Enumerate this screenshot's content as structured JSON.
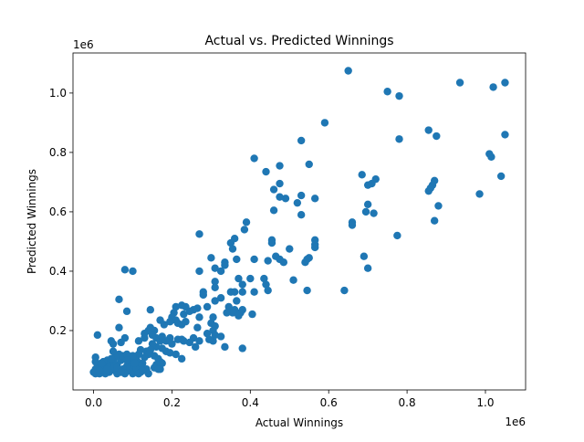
{
  "chart_data": {
    "type": "scatter",
    "title": "Actual vs. Predicted Winnings",
    "xlabel": "Actual Winnings",
    "ylabel": "Predicted Winnings",
    "x_offset_label": "1e6",
    "y_offset_label": "1e6",
    "xlim": [
      -0.0525,
      1.1025
    ],
    "ylim": [
      0.0,
      1.135
    ],
    "x_ticks": [
      0.0,
      0.2,
      0.4,
      0.6,
      0.8,
      1.0
    ],
    "x_tick_labels": [
      "0.0",
      "0.2",
      "0.4",
      "0.6",
      "0.8",
      "1.0"
    ],
    "y_ticks": [
      0.2,
      0.4,
      0.6,
      0.8,
      1.0
    ],
    "y_tick_labels": [
      "0.2",
      "0.4",
      "0.6",
      "0.8",
      "1.0"
    ],
    "grid": false,
    "legend": "none",
    "marker_color": "#1f77b4",
    "series": [
      {
        "points": [
          [
            0.65,
            1.075
          ],
          [
            0.75,
            1.005
          ],
          [
            0.78,
            0.99
          ],
          [
            0.935,
            1.035
          ],
          [
            1.05,
            1.035
          ],
          [
            1.02,
            1.02
          ],
          [
            0.59,
            0.9
          ],
          [
            0.855,
            0.875
          ],
          [
            0.875,
            0.855
          ],
          [
            0.78,
            0.845
          ],
          [
            0.53,
            0.84
          ],
          [
            0.41,
            0.78
          ],
          [
            1.01,
            0.795
          ],
          [
            1.015,
            0.785
          ],
          [
            1.05,
            0.86
          ],
          [
            0.44,
            0.735
          ],
          [
            0.475,
            0.755
          ],
          [
            0.55,
            0.76
          ],
          [
            0.685,
            0.725
          ],
          [
            0.72,
            0.71
          ],
          [
            0.7,
            0.69
          ],
          [
            0.71,
            0.695
          ],
          [
            0.87,
            0.705
          ],
          [
            0.865,
            0.69
          ],
          [
            1.04,
            0.72
          ],
          [
            0.475,
            0.695
          ],
          [
            0.46,
            0.675
          ],
          [
            0.49,
            0.645
          ],
          [
            0.475,
            0.65
          ],
          [
            0.53,
            0.655
          ],
          [
            0.52,
            0.63
          ],
          [
            0.565,
            0.645
          ],
          [
            0.46,
            0.605
          ],
          [
            0.53,
            0.59
          ],
          [
            0.855,
            0.67
          ],
          [
            0.86,
            0.68
          ],
          [
            0.985,
            0.66
          ],
          [
            0.7,
            0.625
          ],
          [
            0.695,
            0.6
          ],
          [
            0.715,
            0.595
          ],
          [
            0.88,
            0.62
          ],
          [
            0.39,
            0.565
          ],
          [
            0.385,
            0.54
          ],
          [
            0.36,
            0.51
          ],
          [
            0.66,
            0.565
          ],
          [
            0.66,
            0.555
          ],
          [
            0.87,
            0.57
          ],
          [
            0.27,
            0.525
          ],
          [
            0.35,
            0.495
          ],
          [
            0.355,
            0.475
          ],
          [
            0.455,
            0.505
          ],
          [
            0.455,
            0.495
          ],
          [
            0.565,
            0.505
          ],
          [
            0.565,
            0.49
          ],
          [
            0.565,
            0.48
          ],
          [
            0.775,
            0.52
          ],
          [
            0.5,
            0.475
          ],
          [
            0.465,
            0.45
          ],
          [
            0.475,
            0.44
          ],
          [
            0.485,
            0.43
          ],
          [
            0.445,
            0.435
          ],
          [
            0.55,
            0.445
          ],
          [
            0.545,
            0.44
          ],
          [
            0.54,
            0.43
          ],
          [
            0.69,
            0.45
          ],
          [
            0.7,
            0.41
          ],
          [
            0.3,
            0.445
          ],
          [
            0.335,
            0.43
          ],
          [
            0.335,
            0.42
          ],
          [
            0.365,
            0.44
          ],
          [
            0.41,
            0.44
          ],
          [
            0.27,
            0.4
          ],
          [
            0.31,
            0.41
          ],
          [
            0.325,
            0.4
          ],
          [
            0.37,
            0.375
          ],
          [
            0.4,
            0.375
          ],
          [
            0.435,
            0.375
          ],
          [
            0.38,
            0.355
          ],
          [
            0.44,
            0.355
          ],
          [
            0.445,
            0.335
          ],
          [
            0.51,
            0.37
          ],
          [
            0.545,
            0.335
          ],
          [
            0.64,
            0.335
          ],
          [
            0.31,
            0.365
          ],
          [
            0.31,
            0.345
          ],
          [
            0.28,
            0.33
          ],
          [
            0.28,
            0.32
          ],
          [
            0.35,
            0.33
          ],
          [
            0.36,
            0.33
          ],
          [
            0.38,
            0.33
          ],
          [
            0.41,
            0.33
          ],
          [
            0.325,
            0.31
          ],
          [
            0.31,
            0.3
          ],
          [
            0.365,
            0.3
          ],
          [
            0.345,
            0.28
          ],
          [
            0.36,
            0.27
          ],
          [
            0.355,
            0.26
          ],
          [
            0.375,
            0.26
          ],
          [
            0.37,
            0.25
          ],
          [
            0.38,
            0.27
          ],
          [
            0.34,
            0.26
          ],
          [
            0.405,
            0.255
          ],
          [
            0.29,
            0.28
          ],
          [
            0.265,
            0.275
          ],
          [
            0.255,
            0.27
          ],
          [
            0.235,
            0.28
          ],
          [
            0.225,
            0.285
          ],
          [
            0.21,
            0.28
          ],
          [
            0.245,
            0.265
          ],
          [
            0.23,
            0.255
          ],
          [
            0.205,
            0.26
          ],
          [
            0.2,
            0.245
          ],
          [
            0.21,
            0.235
          ],
          [
            0.195,
            0.23
          ],
          [
            0.17,
            0.235
          ],
          [
            0.18,
            0.22
          ],
          [
            0.215,
            0.225
          ],
          [
            0.225,
            0.22
          ],
          [
            0.235,
            0.23
          ],
          [
            0.27,
            0.245
          ],
          [
            0.265,
            0.21
          ],
          [
            0.305,
            0.245
          ],
          [
            0.3,
            0.225
          ],
          [
            0.31,
            0.215
          ],
          [
            0.305,
            0.2
          ],
          [
            0.29,
            0.19
          ],
          [
            0.31,
            0.185
          ],
          [
            0.325,
            0.18
          ],
          [
            0.305,
            0.165
          ],
          [
            0.295,
            0.17
          ],
          [
            0.27,
            0.165
          ],
          [
            0.255,
            0.175
          ],
          [
            0.245,
            0.16
          ],
          [
            0.23,
            0.165
          ],
          [
            0.225,
            0.17
          ],
          [
            0.215,
            0.17
          ],
          [
            0.26,
            0.145
          ],
          [
            0.335,
            0.145
          ],
          [
            0.38,
            0.14
          ],
          [
            0.225,
            0.105
          ],
          [
            0.08,
            0.405
          ],
          [
            0.1,
            0.4
          ],
          [
            0.065,
            0.305
          ],
          [
            0.085,
            0.265
          ],
          [
            0.145,
            0.27
          ],
          [
            0.065,
            0.21
          ],
          [
            0.145,
            0.21
          ],
          [
            0.14,
            0.2
          ],
          [
            0.155,
            0.2
          ],
          [
            0.15,
            0.185
          ],
          [
            0.13,
            0.19
          ],
          [
            0.13,
            0.175
          ],
          [
            0.16,
            0.175
          ],
          [
            0.17,
            0.165
          ],
          [
            0.115,
            0.165
          ],
          [
            0.08,
            0.175
          ],
          [
            0.045,
            0.165
          ],
          [
            0.05,
            0.155
          ],
          [
            0.07,
            0.16
          ],
          [
            0.01,
            0.185
          ],
          [
            0.195,
            0.175
          ],
          [
            0.175,
            0.18
          ],
          [
            0.185,
            0.165
          ],
          [
            0.2,
            0.155
          ],
          [
            0.185,
            0.13
          ],
          [
            0.195,
            0.125
          ],
          [
            0.21,
            0.12
          ],
          [
            0.175,
            0.14
          ],
          [
            0.16,
            0.145
          ],
          [
            0.15,
            0.155
          ],
          [
            0.135,
            0.13
          ],
          [
            0.145,
            0.135
          ],
          [
            0.14,
            0.12
          ],
          [
            0.115,
            0.12
          ],
          [
            0.12,
            0.135
          ],
          [
            0.11,
            0.1
          ],
          [
            0.13,
            0.11
          ],
          [
            0.155,
            0.115
          ],
          [
            0.165,
            0.105
          ],
          [
            0.125,
            0.09
          ],
          [
            0.17,
            0.095
          ],
          [
            0.175,
            0.09
          ],
          [
            0.16,
            0.085
          ],
          [
            0.155,
            0.075
          ],
          [
            0.17,
            0.07
          ],
          [
            0.135,
            0.07
          ],
          [
            0.12,
            0.08
          ],
          [
            0.12,
            0.06
          ],
          [
            0.14,
            0.055
          ],
          [
            0.165,
            0.07
          ],
          [
            0.095,
            0.095
          ],
          [
            0.1,
            0.075
          ],
          [
            0.09,
            0.065
          ],
          [
            0.1,
            0.055
          ],
          [
            0.085,
            0.08
          ],
          [
            0.075,
            0.07
          ],
          [
            0.08,
            0.055
          ],
          [
            0.07,
            0.1
          ],
          [
            0.065,
            0.12
          ],
          [
            0.06,
            0.085
          ],
          [
            0.055,
            0.065
          ],
          [
            0.06,
            0.055
          ],
          [
            0.055,
            0.11
          ],
          [
            0.05,
            0.095
          ],
          [
            0.045,
            0.075
          ],
          [
            0.04,
            0.06
          ],
          [
            0.035,
            0.085
          ],
          [
            0.035,
            0.1
          ],
          [
            0.03,
            0.065
          ],
          [
            0.03,
            0.055
          ],
          [
            0.025,
            0.095
          ],
          [
            0.025,
            0.075
          ],
          [
            0.02,
            0.06
          ],
          [
            0.015,
            0.075
          ],
          [
            0.01,
            0.085
          ],
          [
            0.005,
            0.11
          ],
          [
            0.005,
            0.095
          ],
          [
            0.005,
            0.07
          ],
          [
            0.005,
            0.055
          ],
          [
            0.0,
            0.06
          ],
          [
            0.015,
            0.055
          ],
          [
            0.045,
            0.105
          ],
          [
            0.05,
            0.13
          ],
          [
            0.075,
            0.115
          ],
          [
            0.085,
            0.12
          ],
          [
            0.09,
            0.11
          ],
          [
            0.1,
            0.115
          ],
          [
            0.11,
            0.07
          ],
          [
            0.015,
            0.065
          ],
          [
            0.02,
            0.09
          ],
          [
            0.035,
            0.07
          ],
          [
            0.06,
            0.075
          ],
          [
            0.07,
            0.06
          ],
          [
            0.085,
            0.1
          ],
          [
            0.105,
            0.09
          ],
          [
            0.115,
            0.055
          ],
          [
            0.125,
            0.065
          ]
        ]
      }
    ]
  }
}
